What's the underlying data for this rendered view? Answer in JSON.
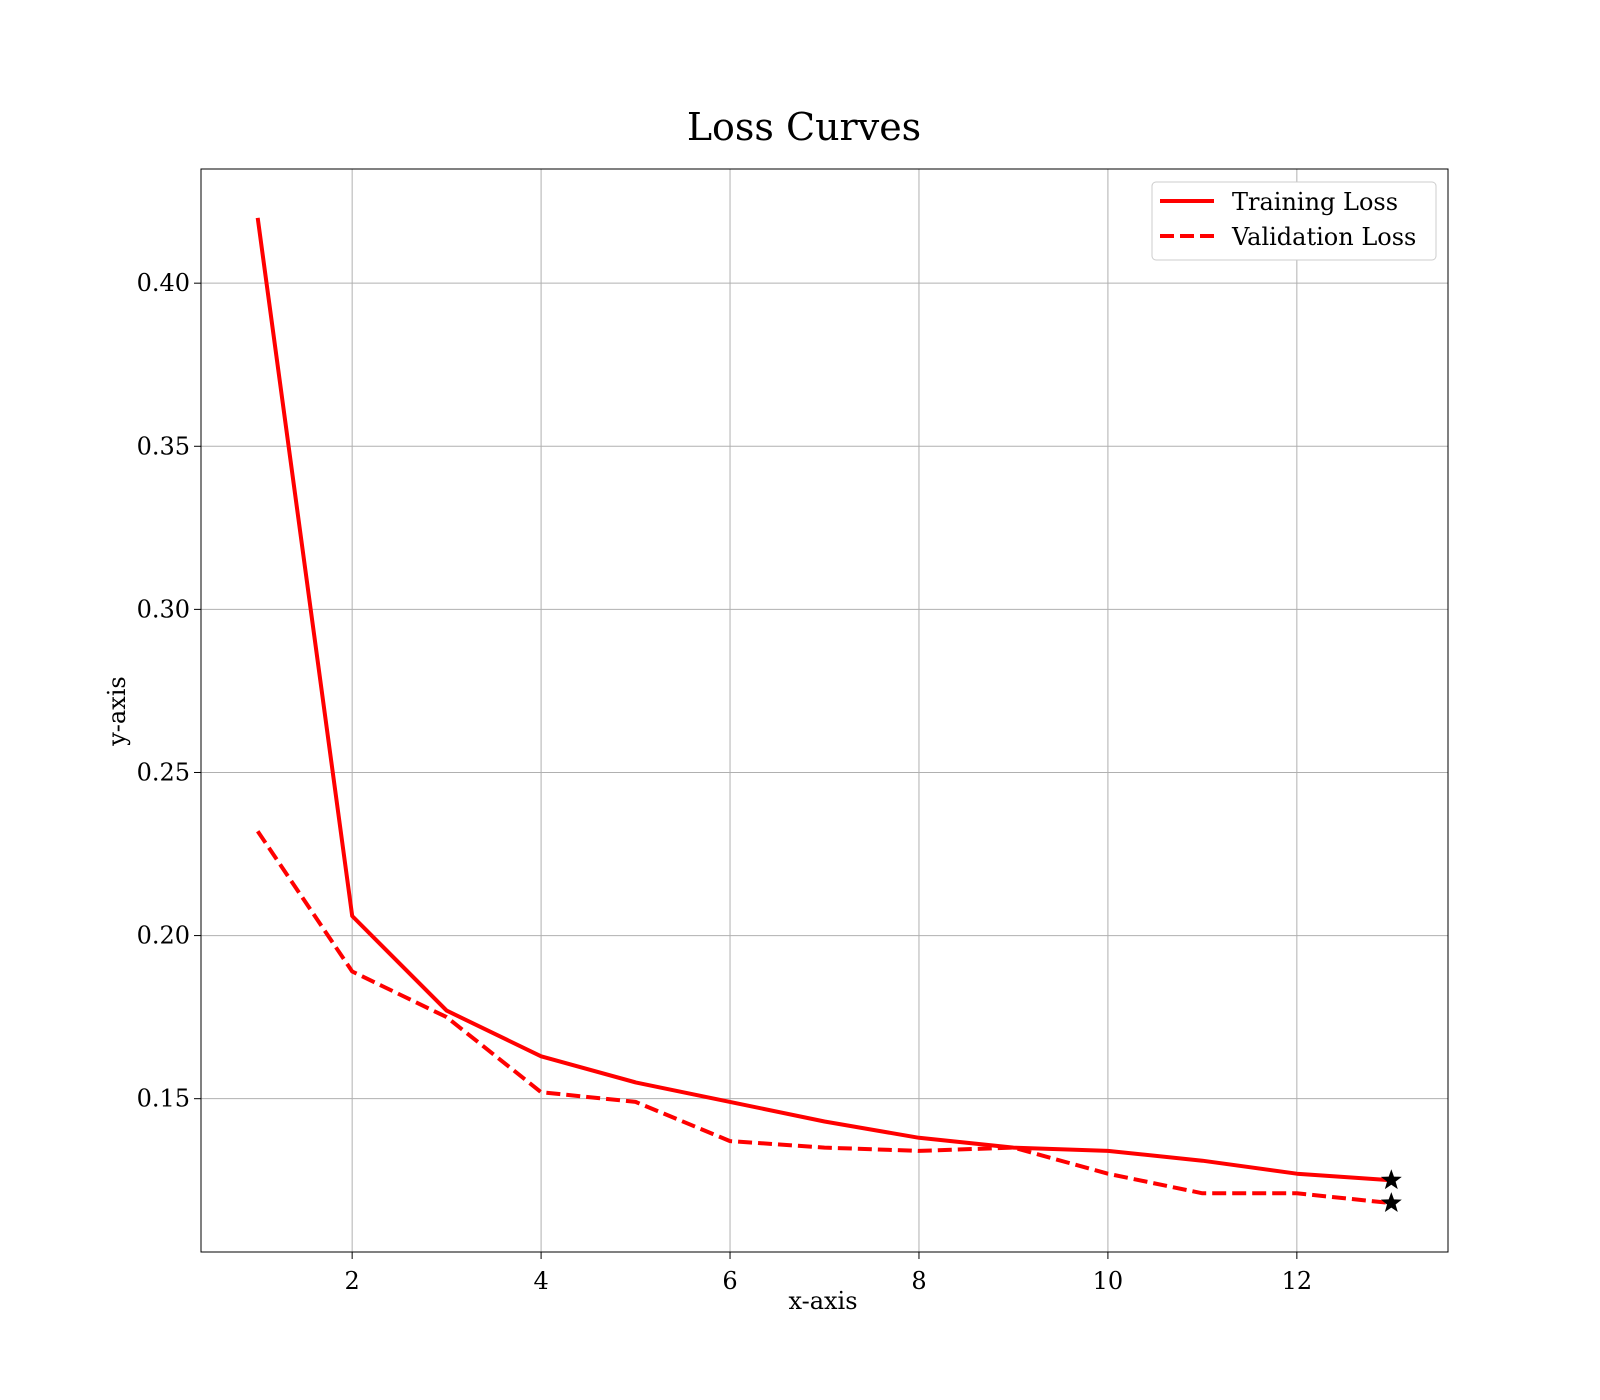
{
  "chart_data": {
    "type": "line",
    "title": "Loss Curves",
    "xlabel": "x-axis",
    "ylabel": "y-axis",
    "xlim": [
      0.4,
      13.6
    ],
    "ylim": [
      0.103,
      0.435
    ],
    "xticks": [
      2,
      4,
      6,
      8,
      10,
      12
    ],
    "yticks": [
      0.15,
      0.2,
      0.25,
      0.3,
      0.35,
      0.4
    ],
    "ytick_labels": [
      "0.15",
      "0.20",
      "0.25",
      "0.30",
      "0.35",
      "0.40"
    ],
    "grid": true,
    "legend_position": "top-right",
    "x": [
      1,
      2,
      3,
      4,
      5,
      6,
      7,
      8,
      9,
      10,
      11,
      12,
      13
    ],
    "series": [
      {
        "name": "Training Loss",
        "style": "solid",
        "color": "#ff0000",
        "values": [
          0.42,
          0.206,
          0.177,
          0.163,
          0.155,
          0.149,
          0.143,
          0.138,
          0.135,
          0.134,
          0.131,
          0.127,
          0.125
        ]
      },
      {
        "name": "Validation Loss",
        "style": "dashed",
        "color": "#ff0000",
        "values": [
          0.232,
          0.189,
          0.175,
          0.152,
          0.149,
          0.137,
          0.135,
          0.134,
          0.135,
          0.127,
          0.121,
          0.121,
          0.118
        ]
      }
    ],
    "markers": [
      {
        "series": "Training Loss",
        "x": 13,
        "y": 0.125,
        "shape": "star",
        "color": "#000000"
      },
      {
        "series": "Validation Loss",
        "x": 13,
        "y": 0.118,
        "shape": "star",
        "color": "#000000"
      }
    ]
  }
}
